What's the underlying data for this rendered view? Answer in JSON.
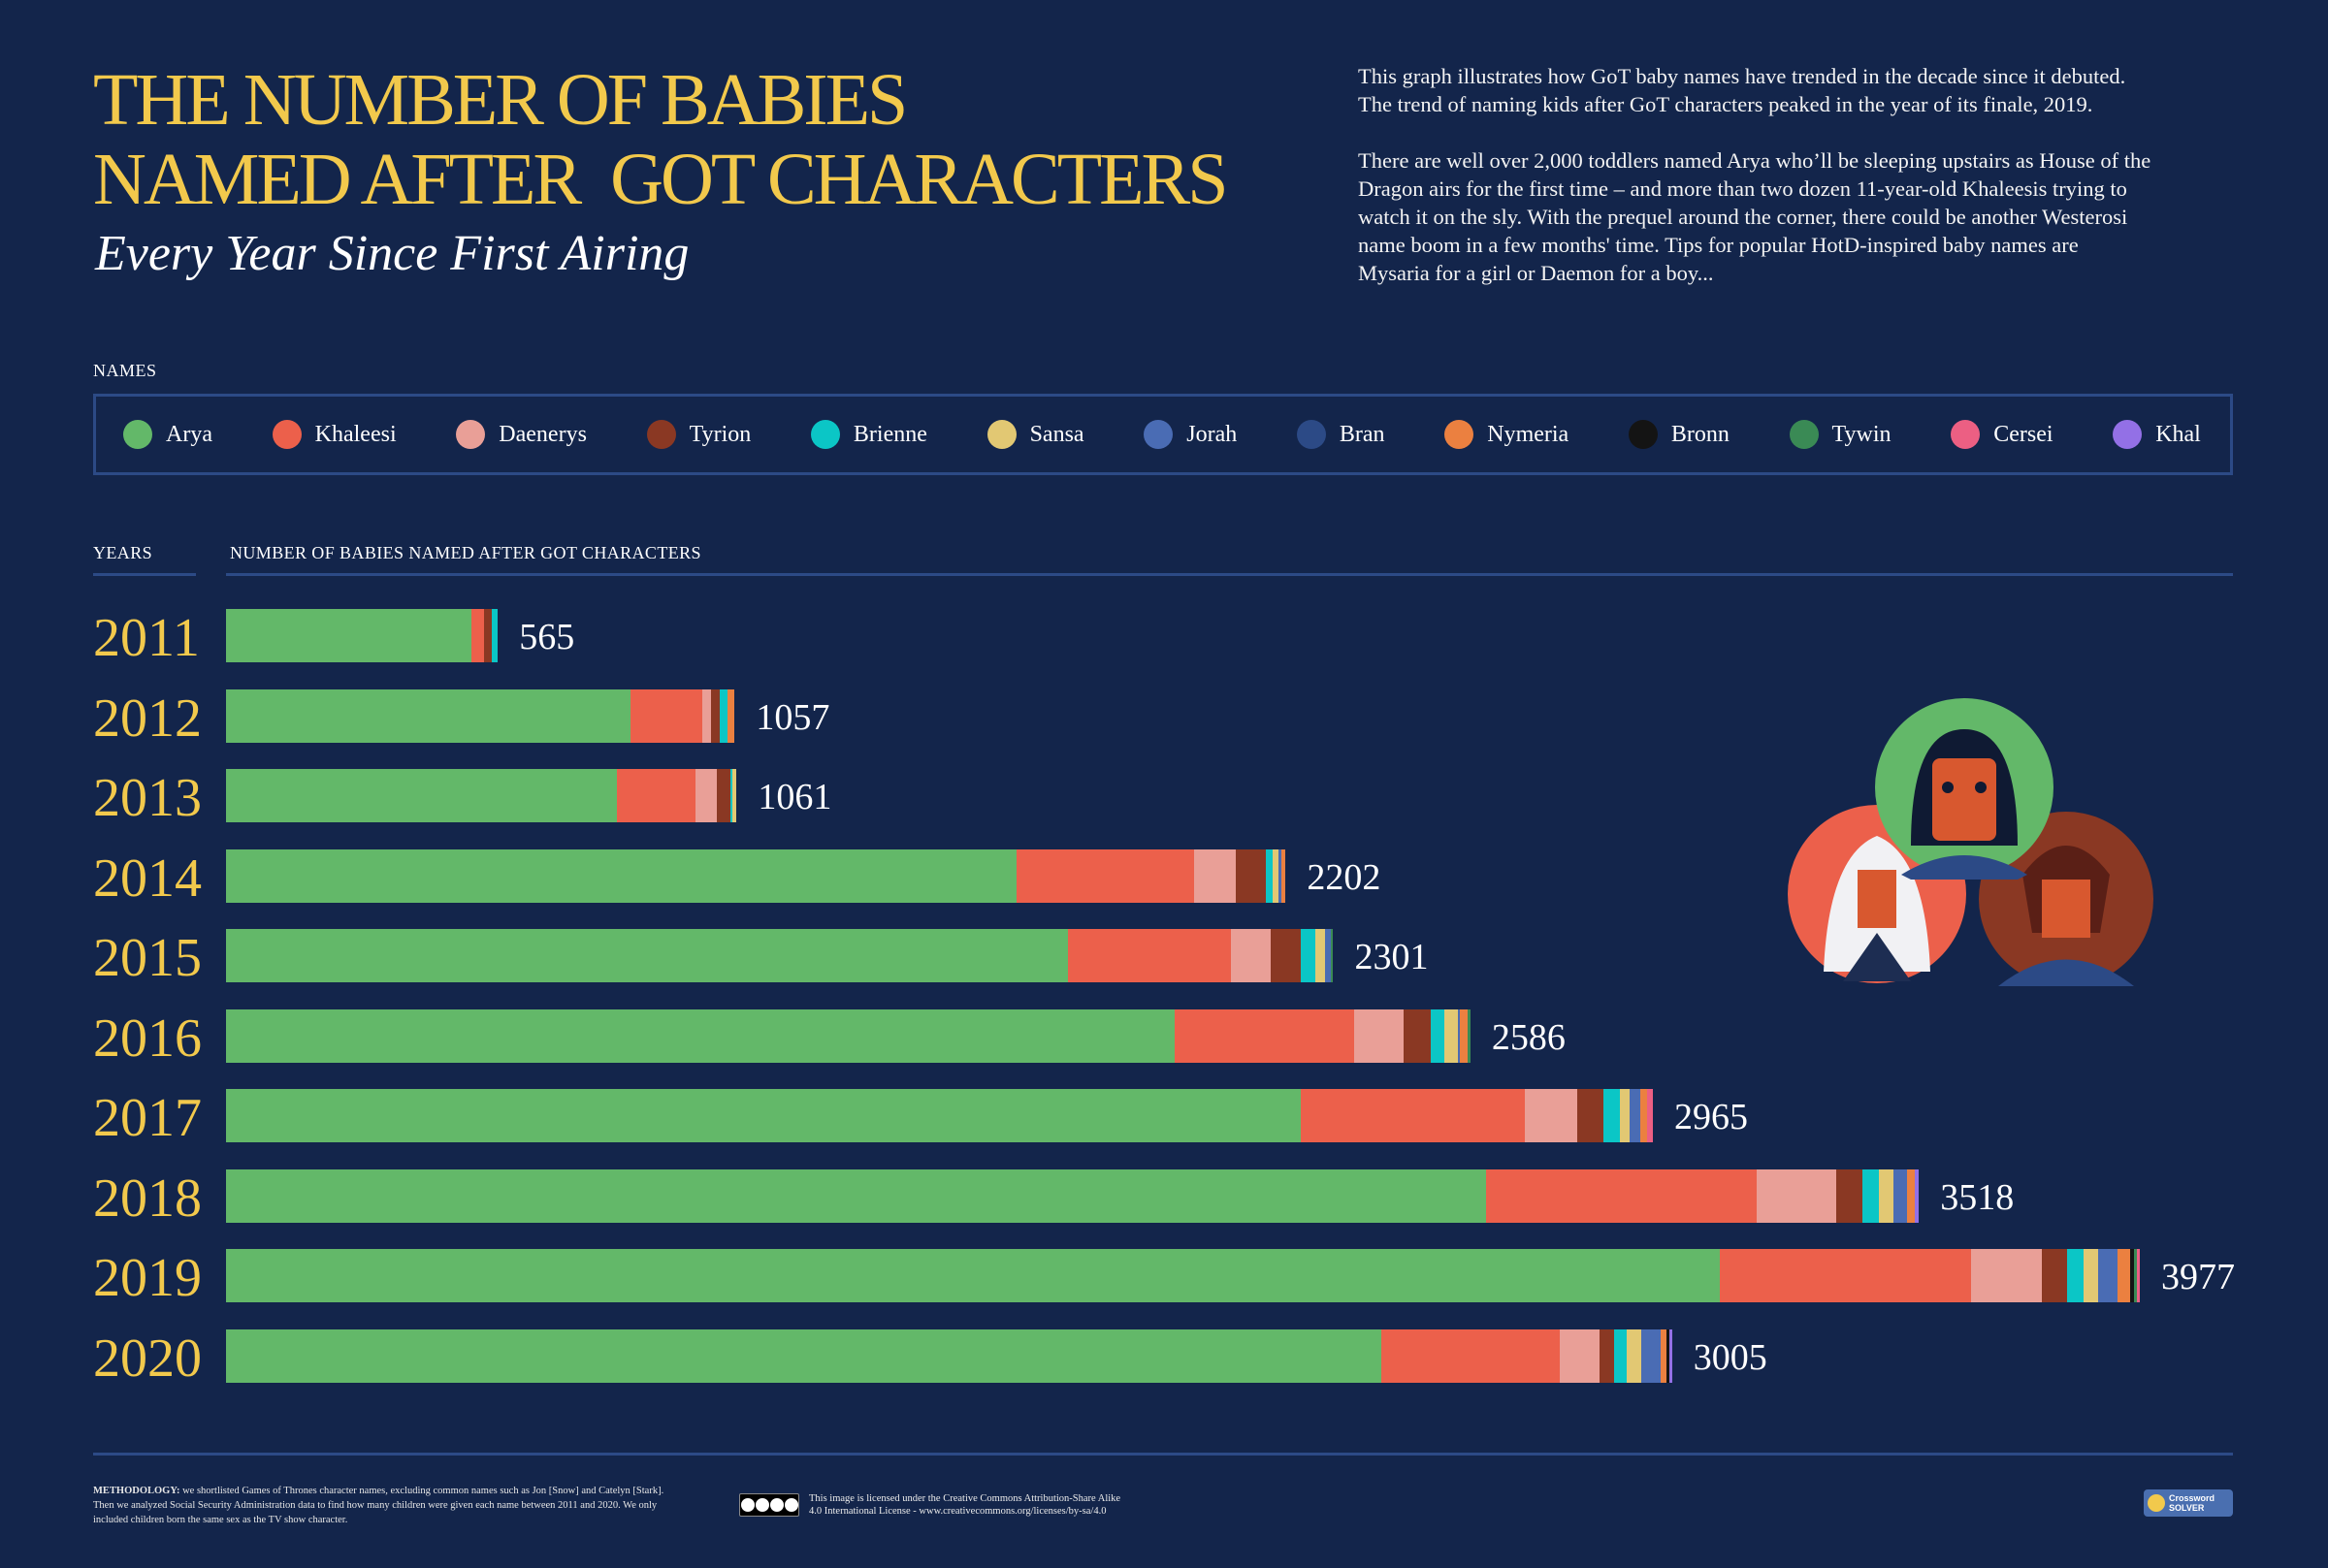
{
  "header": {
    "title_line1": "THE NUMBER OF BABIES",
    "title_line2": "NAMED AFTER  GOT CHARACTERS",
    "subtitle": "Every Year Since First Airing",
    "description": [
      "This graph illustrates how GoT baby names have trended in the decade since it debuted. The trend of naming kids after GoT characters peaked in the year of its finale, 2019.",
      "There are well over 2,000 toddlers named Arya who’ll be sleeping upstairs as House of the Dragon airs for the first time – and more than two dozen 11-year-old Khaleesis trying to watch it on the sly. With the prequel around the corner, there could be another Westerosi name boom in a few months' time. Tips for popular HotD-inspired baby names are Mysaria for a girl or Daemon for a boy..."
    ]
  },
  "legend_label": "NAMES",
  "axis_headers": {
    "years": "YEARS",
    "values": "NUMBER OF BABIES NAMED AFTER GOT CHARACTERS"
  },
  "chart_data": {
    "type": "bar",
    "orientation": "horizontal",
    "stacked": true,
    "title": "The Number of Babies Named After GoT Characters — Every Year Since First Airing",
    "xlabel": "NUMBER OF BABIES NAMED AFTER GOT CHARACTERS",
    "ylabel": "YEARS",
    "grid": false,
    "legend_position": "top",
    "categories": [
      "2011",
      "2012",
      "2013",
      "2014",
      "2015",
      "2016",
      "2017",
      "2018",
      "2019",
      "2020"
    ],
    "totals": [
      565,
      1057,
      1061,
      2202,
      2301,
      2586,
      2965,
      3518,
      3977,
      3005
    ],
    "series": [
      {
        "name": "Arya",
        "color": "#63b869",
        "values": [
          509,
          840,
          812,
          1642,
          1749,
          1972,
          2233,
          2619,
          3105,
          2401
        ]
      },
      {
        "name": "Khaleesi",
        "color": "#ec604b",
        "values": [
          28,
          149,
          163,
          370,
          339,
          373,
          466,
          561,
          521,
          370
        ]
      },
      {
        "name": "Daenerys",
        "color": "#e99f97",
        "values": [
          0,
          19,
          45,
          86,
          83,
          102,
          108,
          166,
          148,
          83
        ]
      },
      {
        "name": "Tyrion",
        "color": "#8a3823",
        "values": [
          16,
          19,
          29,
          62,
          62,
          56,
          56,
          55,
          52,
          31
        ]
      },
      {
        "name": "Brienne",
        "color": "#0bc6c6",
        "values": [
          12,
          15,
          4,
          15,
          31,
          28,
          34,
          34,
          34,
          25
        ]
      },
      {
        "name": "Sansa",
        "color": "#e2c873",
        "values": [
          0,
          0,
          8,
          12,
          19,
          28,
          19,
          31,
          31,
          31
        ]
      },
      {
        "name": "Jorah",
        "color": "#4a6cb4",
        "values": [
          0,
          0,
          0,
          6,
          12,
          6,
          22,
          28,
          40,
          40
        ]
      },
      {
        "name": "Bran",
        "color": "#2c4a86",
        "values": [
          0,
          0,
          0,
          0,
          0,
          0,
          0,
          0,
          0,
          0
        ]
      },
      {
        "name": "Nymeria",
        "color": "#eb8040",
        "values": [
          0,
          15,
          0,
          9,
          0,
          15,
          15,
          15,
          25,
          12
        ]
      },
      {
        "name": "Bronn",
        "color": "#141414",
        "values": [
          0,
          0,
          0,
          0,
          0,
          0,
          0,
          0,
          9,
          6
        ]
      },
      {
        "name": "Tywin",
        "color": "#3a8a55",
        "values": [
          0,
          0,
          0,
          0,
          6,
          6,
          0,
          0,
          6,
          0
        ]
      },
      {
        "name": "Cersei",
        "color": "#ec5f83",
        "values": [
          0,
          0,
          0,
          0,
          0,
          0,
          12,
          0,
          6,
          0
        ]
      },
      {
        "name": "Khal",
        "color": "#9370e6",
        "values": [
          0,
          0,
          0,
          0,
          0,
          0,
          0,
          9,
          0,
          6
        ]
      }
    ]
  },
  "footer": {
    "methodology_label": "METHODOLOGY:",
    "methodology_text": " we shortlisted Games of Thrones character names, excluding common names such as Jon [Snow] and Catelyn [Stark]. Then we analyzed Social Security Administration data to find how many children were given each name between 2011 and 2020. We only included children born the same sex as the TV show character.",
    "license_line1": "This image is licensed under the Creative Commons Attribution-Share Alike",
    "license_line2": "4.0 International License - www.creativecommons.org/licenses/by-sa/4.0",
    "logo_line1": "Crossword",
    "logo_line2": "SOLVER"
  }
}
